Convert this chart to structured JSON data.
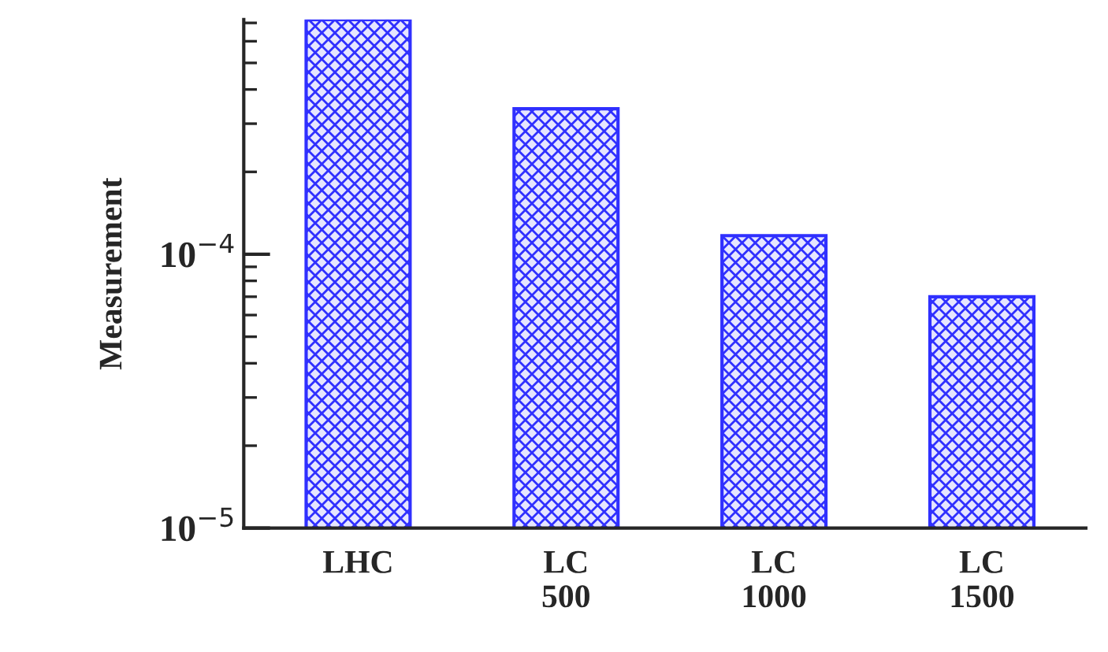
{
  "chart_data": {
    "type": "bar",
    "ylabel": "Measurement",
    "categories": [
      "LHC",
      "LC\n500",
      "LC\n1000",
      "LC\n1500"
    ],
    "values": [
      0.00072,
      0.00034,
      0.000117,
      7e-05
    ],
    "color": "#3030ff",
    "log": true,
    "ylim": [
      1e-05,
      0.00072
    ],
    "yticks": [
      {
        "value": 1e-05,
        "label": "10$^{−5}$"
      },
      {
        "value": 0.0001,
        "label": "10$^{−4}$"
      }
    ],
    "grid": false,
    "legend": false
  }
}
